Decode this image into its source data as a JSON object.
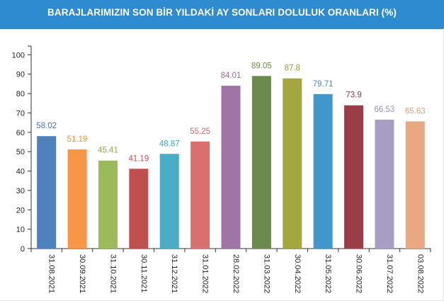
{
  "header": {
    "title": "BARAJLARIMIZIN SON BİR YILDAKİ AY SONLARI DOLULUK ORANLARI (%)"
  },
  "chart_data": {
    "type": "bar",
    "title": "BARAJLARIMIZIN SON BİR YILDAKİ AY SONLARI DOLULUK ORANLARI (%)",
    "xlabel": "",
    "ylabel": "",
    "ylim": [
      0,
      100
    ],
    "yticks": [
      0,
      10,
      20,
      30,
      40,
      50,
      60,
      70,
      80,
      90,
      100
    ],
    "grid": false,
    "legend": "none",
    "categories": [
      "31.08.2021",
      "30.09.2021",
      "31.10.2021",
      "30.11.2021",
      "31.12.2021",
      "31.01.2022",
      "28.02.2022",
      "31.03.2022",
      "30.04.2022",
      "31.05.2022",
      "30.06.2022",
      "31.07.2022",
      "03.08.2022"
    ],
    "values": [
      58.02,
      51.19,
      45.41,
      41.19,
      48.87,
      55.25,
      84.01,
      89.05,
      87.8,
      79.71,
      73.9,
      66.53,
      65.63
    ],
    "value_labels": [
      "58.02",
      "51.19",
      "45.41",
      "41.19",
      "48.87",
      "55.25",
      "84.01",
      "89.05",
      "87.8",
      "79.71",
      "73.9",
      "66.53",
      "65.63"
    ],
    "colors": [
      "#4f81bd",
      "#f79646",
      "#9bbb59",
      "#c0504d",
      "#4bacc6",
      "#d9706f",
      "#a074a6",
      "#6c8a4e",
      "#a5a63d",
      "#4197c9",
      "#993e49",
      "#a89ec4",
      "#e8a883"
    ],
    "label_colors": [
      "#4f6fa0",
      "#e8913f",
      "#8aa94a",
      "#c0504d",
      "#3e9fbd",
      "#d06766",
      "#9a6aa0",
      "#6c8a4e",
      "#9a9a30",
      "#4a88c0",
      "#8f3a45",
      "#9a8fbb",
      "#e29a75"
    ]
  }
}
